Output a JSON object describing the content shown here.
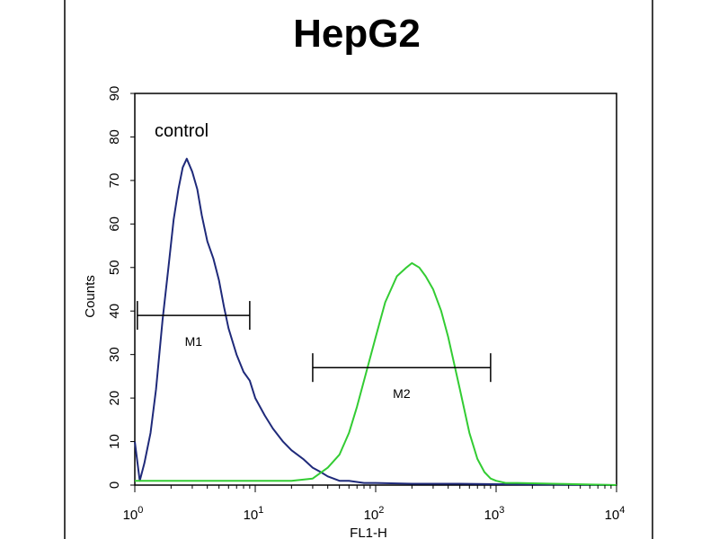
{
  "chart_data": {
    "type": "line",
    "title": "HepG2",
    "xlabel": "FL1-H",
    "ylabel": "Counts",
    "x_scale": "log",
    "xlim": [
      1,
      10000
    ],
    "ylim": [
      0,
      90
    ],
    "x_ticks": [
      {
        "value": 1,
        "base": "10",
        "exp": "0"
      },
      {
        "value": 10,
        "base": "10",
        "exp": "1"
      },
      {
        "value": 100,
        "base": "10",
        "exp": "2"
      },
      {
        "value": 1000,
        "base": "10",
        "exp": "3"
      },
      {
        "value": 10000,
        "base": "10",
        "exp": "4"
      }
    ],
    "y_ticks": [
      "0",
      "10",
      "20",
      "30",
      "40",
      "50",
      "60",
      "70",
      "80",
      "90"
    ],
    "grid": false,
    "annotations": [
      {
        "text": "control"
      }
    ],
    "markers": [
      {
        "label": "M1",
        "range": [
          1.05,
          9
        ],
        "y": 39
      },
      {
        "label": "M2",
        "range": [
          30,
          900
        ],
        "y": 27
      }
    ],
    "series": [
      {
        "color": "#1f2a7a",
        "x": [
          1,
          1.1,
          1.2,
          1.35,
          1.5,
          1.7,
          1.9,
          2.1,
          2.3,
          2.5,
          2.7,
          3,
          3.3,
          3.6,
          4,
          4.5,
          5,
          5.5,
          6,
          7,
          8,
          9,
          10,
          12,
          14,
          17,
          20,
          25,
          30,
          35,
          40,
          50,
          60,
          80,
          100,
          200,
          500,
          1000,
          10000
        ],
        "y": [
          10,
          1,
          5,
          12,
          22,
          38,
          50,
          61,
          68,
          73,
          75,
          72,
          68,
          62,
          56,
          52,
          47,
          41,
          36,
          30,
          26,
          24,
          20,
          16,
          13,
          10,
          8,
          6,
          4,
          3,
          2,
          1,
          1,
          0.5,
          0.5,
          0.3,
          0.3,
          0.2,
          0
        ]
      },
      {
        "color": "#33cc33",
        "x": [
          1,
          2,
          5,
          10,
          20,
          30,
          40,
          50,
          60,
          70,
          80,
          100,
          120,
          150,
          180,
          200,
          230,
          260,
          300,
          350,
          400,
          500,
          600,
          700,
          800,
          900,
          1000,
          1200,
          1500,
          3000,
          10000
        ],
        "y": [
          1,
          1,
          1,
          1,
          1,
          1.5,
          4,
          7,
          12,
          18,
          24,
          34,
          42,
          48,
          50,
          51,
          50,
          48,
          45,
          40,
          34,
          22,
          12,
          6,
          3,
          1.5,
          1,
          0.5,
          0.5,
          0.3,
          0
        ]
      }
    ]
  }
}
